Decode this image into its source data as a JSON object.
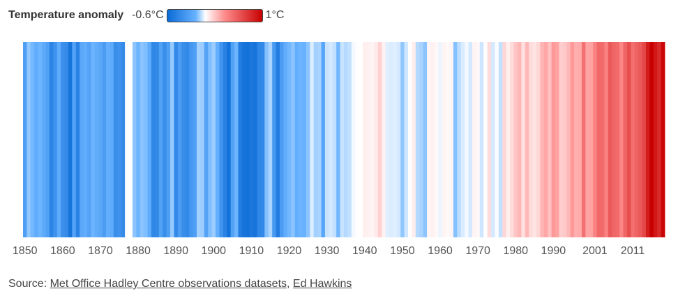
{
  "legend": {
    "title": "Temperature anomaly",
    "min_label": "-0.6°C",
    "max_label": "1°C",
    "colors": [
      "#0a6ad6",
      "#68b2ff",
      "#ffffff",
      "#ff8d8d",
      "#c80000"
    ]
  },
  "chart_data": {
    "type": "heatmap",
    "title": "",
    "xlabel": "",
    "ylabel": "",
    "x_ticks": [
      "1850",
      "1860",
      "1870",
      "1880",
      "1890",
      "1900",
      "1910",
      "1920",
      "1930",
      "1940",
      "1950",
      "1960",
      "1970",
      "1980",
      "1990",
      "2001",
      "2011"
    ],
    "x_range": [
      1850,
      2019
    ],
    "value_range": [
      -0.6,
      1.0
    ],
    "series": [
      {
        "years": [
          1850,
          1851,
          1852,
          1853,
          1854,
          1855,
          1856,
          1857,
          1858,
          1859,
          1860,
          1861,
          1862,
          1863,
          1864,
          1865,
          1866,
          1867,
          1868,
          1869,
          1870,
          1871,
          1872,
          1873,
          1874,
          1875,
          1876,
          1877,
          1878,
          1879,
          1880,
          1881,
          1882,
          1883,
          1884,
          1885,
          1886,
          1887,
          1888,
          1889,
          1890,
          1891,
          1892,
          1893,
          1894,
          1895,
          1896,
          1897,
          1898,
          1899,
          1900,
          1901,
          1902,
          1903,
          1904,
          1905,
          1906,
          1907,
          1908,
          1909,
          1910,
          1911,
          1912,
          1913,
          1914,
          1915,
          1916,
          1917,
          1918,
          1919,
          1920,
          1921,
          1922,
          1923,
          1924,
          1925,
          1926,
          1927,
          1928,
          1929,
          1930,
          1931,
          1932,
          1933,
          1934,
          1935,
          1936,
          1937,
          1938,
          1939,
          1940,
          1941,
          1942,
          1943,
          1944,
          1945,
          1946,
          1947,
          1948,
          1949,
          1950,
          1951,
          1952,
          1953,
          1954,
          1955,
          1956,
          1957,
          1958,
          1959,
          1960,
          1961,
          1962,
          1963,
          1964,
          1965,
          1966,
          1967,
          1968,
          1969,
          1970,
          1971,
          1972,
          1973,
          1974,
          1975,
          1976,
          1977,
          1978,
          1979,
          1980,
          1981,
          1982,
          1983,
          1984,
          1985,
          1986,
          1987,
          1988,
          1989,
          1990,
          1991,
          1992,
          1993,
          1994,
          1995,
          1996,
          1997,
          1998,
          1999,
          2000,
          2001,
          2002,
          2003,
          2004,
          2005,
          2006,
          2007,
          2008,
          2009,
          2010,
          2011,
          2012,
          2013,
          2014,
          2015,
          2016,
          2017,
          2018,
          2019
        ],
        "anomalies": [
          -0.33,
          -0.18,
          -0.23,
          -0.27,
          -0.24,
          -0.28,
          -0.32,
          -0.44,
          -0.38,
          -0.28,
          -0.39,
          -0.41,
          -0.51,
          -0.31,
          -0.45,
          -0.29,
          -0.27,
          -0.31,
          -0.24,
          -0.27,
          -0.29,
          -0.34,
          -0.26,
          -0.28,
          -0.4,
          -0.38,
          -0.41,
          0.0,
          0.0,
          -0.19,
          -0.24,
          -0.19,
          -0.21,
          -0.28,
          -0.43,
          -0.42,
          -0.32,
          -0.4,
          -0.33,
          -0.17,
          -0.42,
          -0.34,
          -0.4,
          -0.42,
          -0.36,
          -0.33,
          -0.15,
          -0.16,
          -0.31,
          -0.21,
          -0.16,
          -0.26,
          -0.37,
          -0.45,
          -0.52,
          -0.32,
          -0.24,
          -0.47,
          -0.51,
          -0.52,
          -0.49,
          -0.51,
          -0.43,
          -0.42,
          -0.2,
          -0.14,
          -0.35,
          -0.47,
          -0.34,
          -0.27,
          -0.23,
          -0.19,
          -0.26,
          -0.24,
          -0.25,
          -0.19,
          -0.06,
          -0.15,
          -0.14,
          -0.3,
          -0.09,
          -0.07,
          -0.1,
          -0.23,
          -0.09,
          -0.12,
          -0.1,
          -0.02,
          0.01,
          0.0,
          0.07,
          0.06,
          0.05,
          0.09,
          0.2,
          0.06,
          -0.05,
          -0.06,
          -0.05,
          -0.07,
          -0.18,
          -0.08,
          0.01,
          0.08,
          -0.12,
          -0.14,
          -0.19,
          0.05,
          0.06,
          0.03,
          -0.03,
          0.05,
          0.03,
          0.05,
          -0.2,
          -0.11,
          -0.06,
          -0.02,
          -0.07,
          0.05,
          0.03,
          -0.08,
          0.01,
          0.16,
          -0.07,
          -0.01,
          -0.1,
          0.18,
          0.07,
          0.16,
          0.26,
          0.32,
          0.14,
          0.31,
          0.16,
          0.12,
          0.18,
          0.33,
          0.39,
          0.27,
          0.45,
          0.41,
          0.22,
          0.24,
          0.31,
          0.45,
          0.35,
          0.37,
          0.6,
          0.4,
          0.41,
          0.54,
          0.63,
          0.62,
          0.54,
          0.68,
          0.64,
          0.62,
          0.53,
          0.64,
          0.72,
          0.61,
          0.65,
          0.68,
          0.75,
          0.9,
          1.02,
          0.92,
          0.85,
          0.98
        ]
      }
    ],
    "legend_position": "top-left",
    "grid": false
  },
  "source": {
    "prefix": "Source: ",
    "link1": "Met Office Hadley Centre observations datasets",
    "separator": ", ",
    "link2": "Ed Hawkins"
  }
}
